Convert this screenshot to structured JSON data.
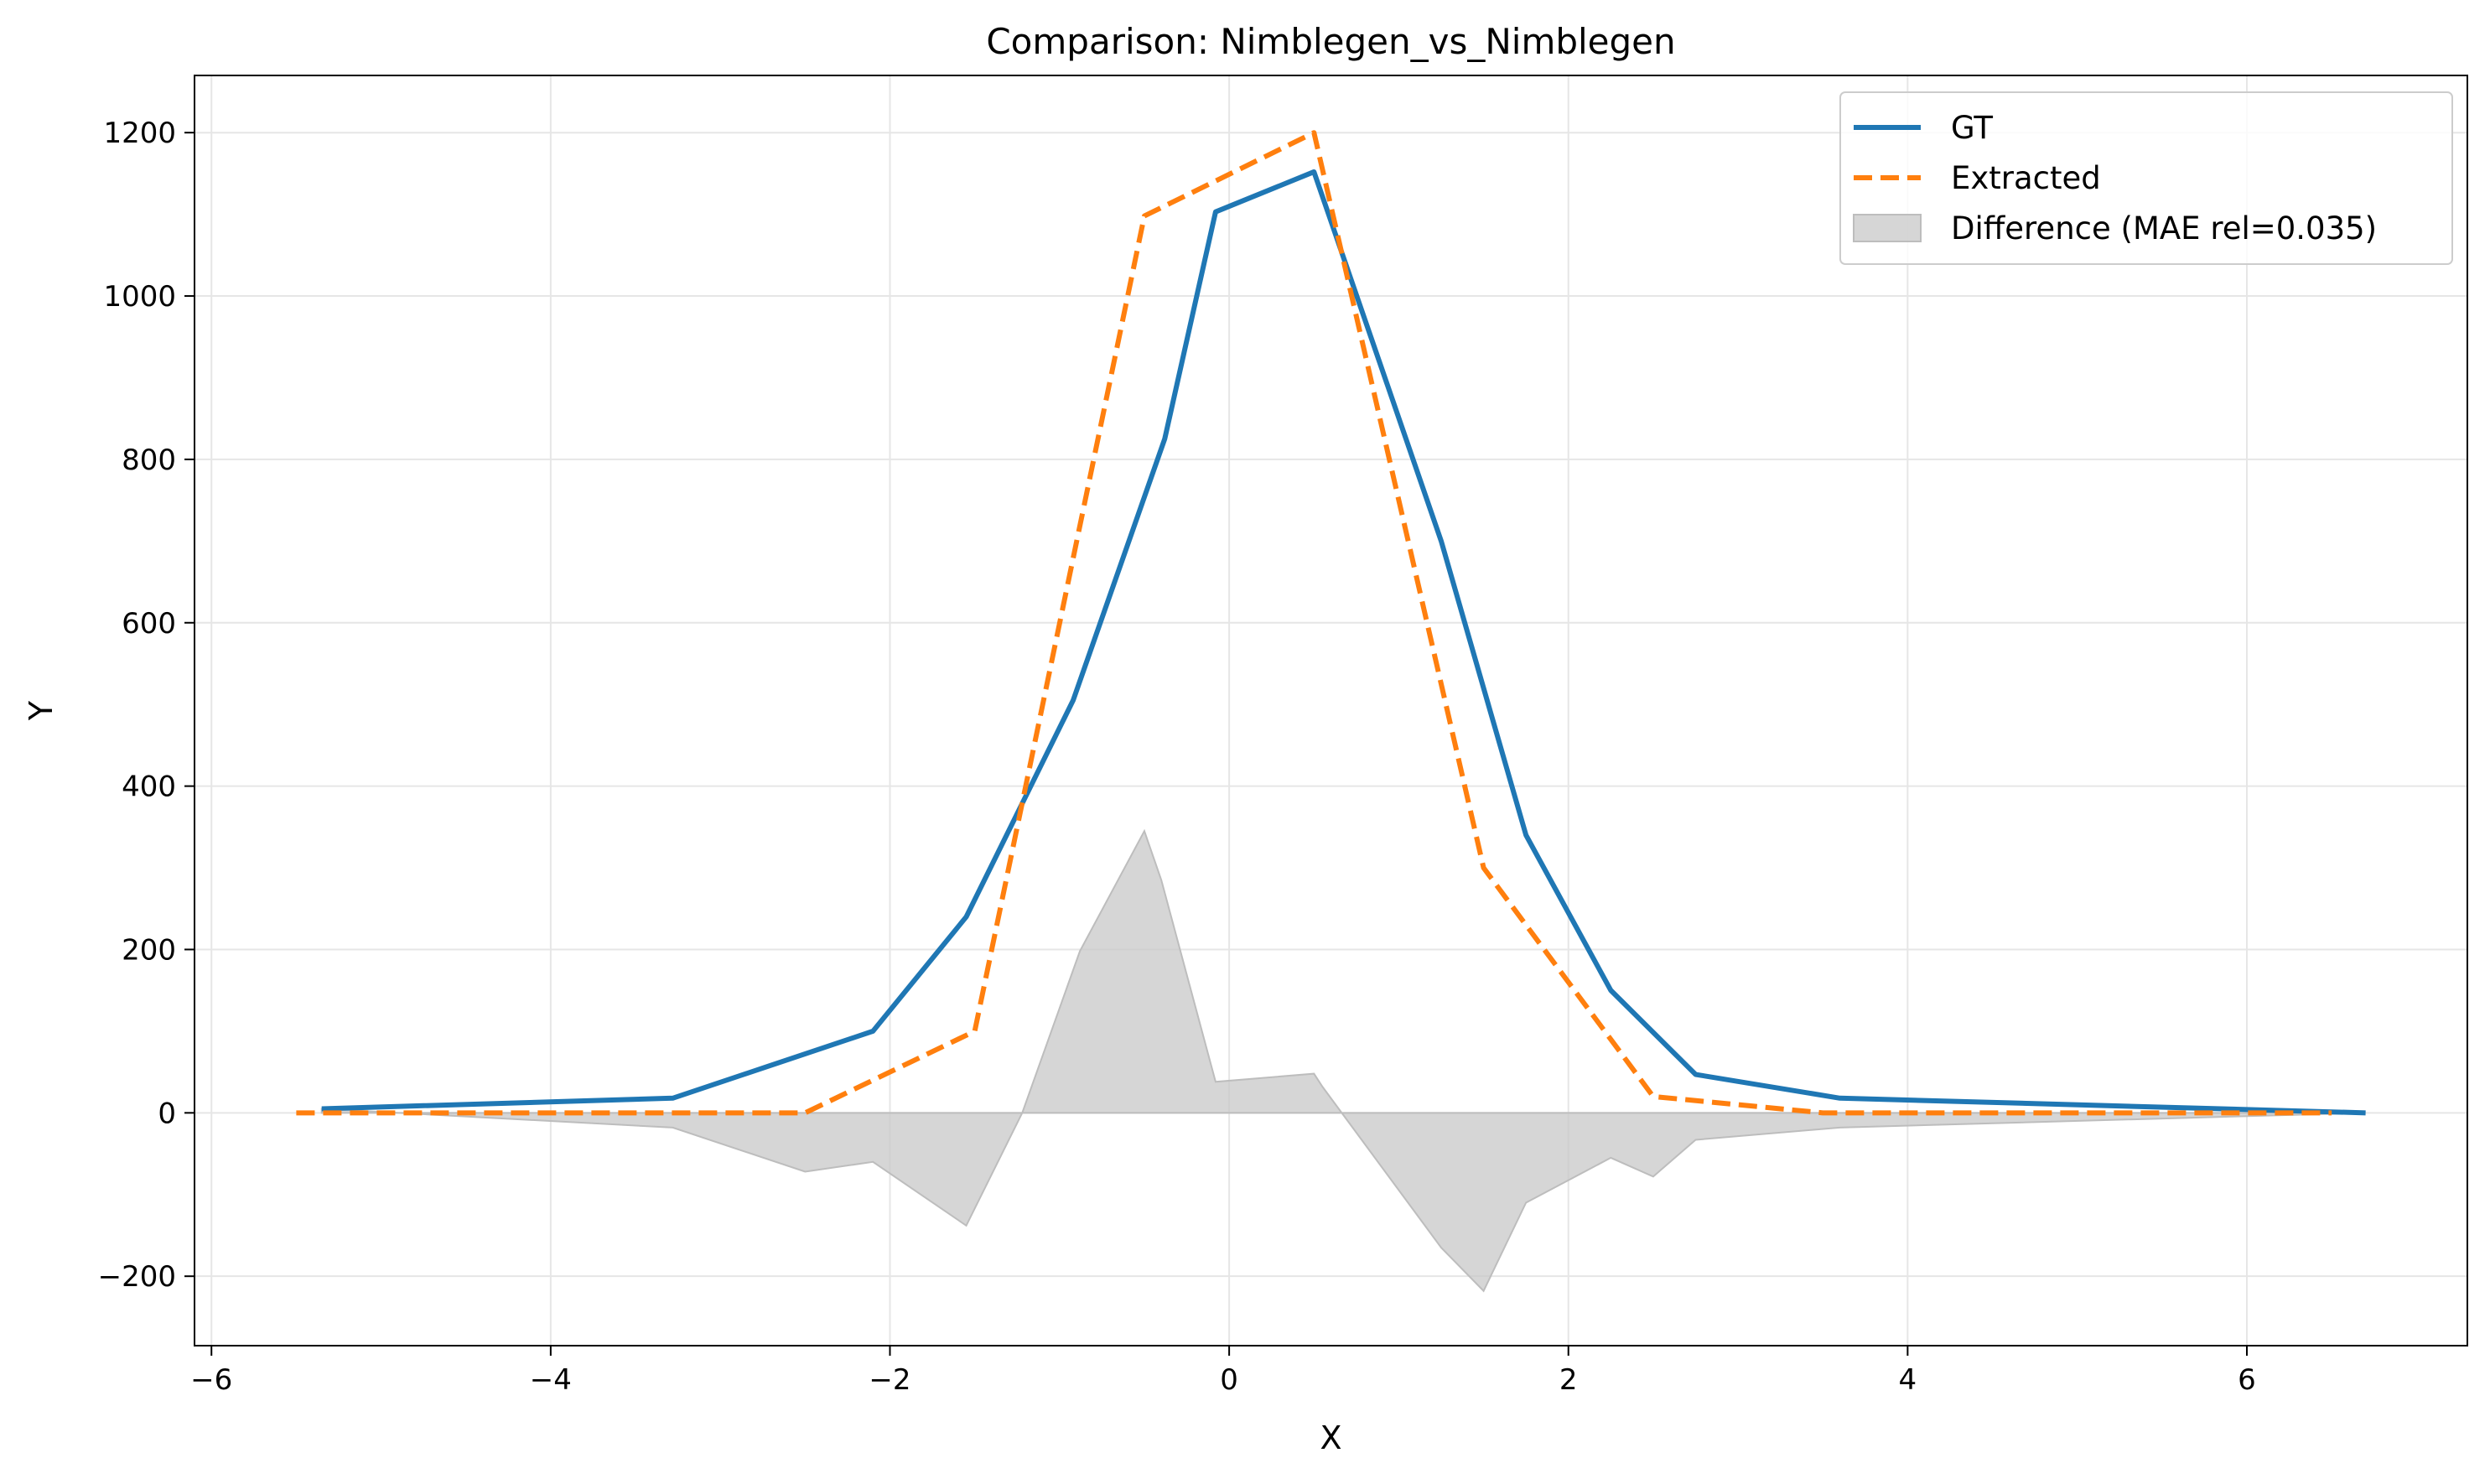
{
  "chart_data": {
    "type": "line",
    "title": "Comparison: Nimblegen_vs_Nimblegen",
    "xlabel": "X",
    "ylabel": "Y",
    "xlim": [
      -6.1,
      7.3
    ],
    "ylim": [
      -285,
      1270
    ],
    "xticks": [
      -6,
      -4,
      -2,
      0,
      2,
      4,
      6
    ],
    "xtick_labels": [
      "−6",
      "−4",
      "−2",
      "0",
      "2",
      "4",
      "6"
    ],
    "yticks": [
      -200,
      0,
      200,
      400,
      600,
      800,
      1000,
      1200
    ],
    "ytick_labels": [
      "−200",
      "0",
      "200",
      "400",
      "600",
      "800",
      "1000",
      "1200"
    ],
    "grid": true,
    "legend_position": "top-right",
    "series": [
      {
        "name": "GT",
        "style": "solid",
        "color": "#1f77b4",
        "x": [
          -5.35,
          -3.28,
          -2.1,
          -1.55,
          -0.92,
          -0.38,
          -0.08,
          0.5,
          1.25,
          1.75,
          2.25,
          2.75,
          3.6,
          6.7
        ],
        "y": [
          5,
          18,
          100,
          240,
          505,
          825,
          1103,
          1152,
          700,
          340,
          150,
          47,
          18,
          0
        ]
      },
      {
        "name": "Extracted",
        "style": "dashed",
        "color": "#ff7f0e",
        "x": [
          -5.5,
          -3.2,
          -2.5,
          -1.5,
          -0.5,
          0.5,
          1.5,
          2.5,
          3.5,
          6.5
        ],
        "y": [
          0,
          0,
          0,
          100,
          1098,
          1200,
          300,
          20,
          0,
          0
        ]
      }
    ],
    "difference": {
      "name": "Difference (MAE rel=0.035)",
      "color": "#c8c8c8",
      "x": [
        -5.35,
        -3.28,
        -2.5,
        -2.1,
        -1.55,
        -1.22,
        -0.88,
        -0.5,
        -0.4,
        -0.08,
        0.5,
        0.55,
        1.25,
        1.5,
        1.75,
        2.25,
        2.5,
        2.75,
        3.6,
        6.7
      ],
      "y": [
        5,
        -18,
        -72,
        -60,
        -138,
        0,
        198,
        345,
        285,
        38,
        48,
        32,
        -165,
        -218,
        -110,
        -55,
        -78,
        -33,
        -18,
        0
      ]
    }
  }
}
